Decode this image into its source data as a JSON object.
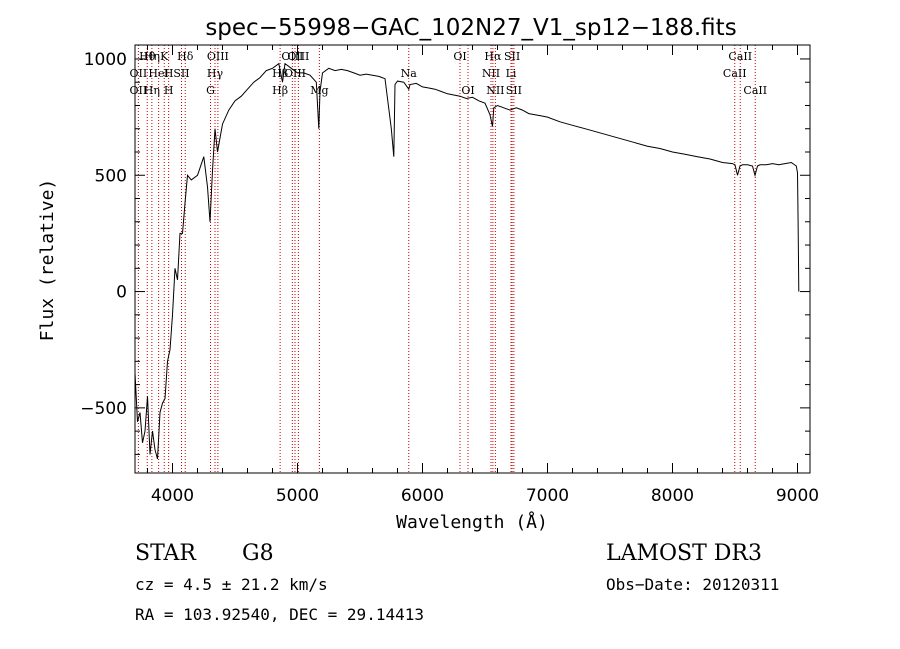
{
  "chart_data": {
    "type": "line",
    "title": "spec−55998−GAC_102N27_V1_sp12−188.fits",
    "xlabel": "Wavelength (Å)",
    "ylabel": "Flux (relative)",
    "xlim": [
      3700,
      9100
    ],
    "ylim": [
      -780,
      1060
    ],
    "x_ticks": [
      4000,
      5000,
      6000,
      7000,
      8000,
      9000
    ],
    "x_tick_labels": [
      "4000",
      "5000",
      "6000",
      "7000",
      "8000",
      "9000"
    ],
    "y_ticks": [
      -500,
      0,
      500,
      1000
    ],
    "y_tick_labels": [
      "−500",
      "0",
      "500",
      "1000"
    ],
    "series": [
      {
        "name": "flux",
        "x": [
          3700,
          3720,
          3740,
          3760,
          3780,
          3800,
          3820,
          3840,
          3860,
          3880,
          3900,
          3920,
          3940,
          3960,
          3980,
          4000,
          4020,
          4040,
          4060,
          4080,
          4100,
          4120,
          4150,
          4200,
          4250,
          4280,
          4300,
          4320,
          4340,
          4360,
          4400,
          4450,
          4500,
          4550,
          4600,
          4650,
          4700,
          4750,
          4800,
          4850,
          4880,
          4900,
          4950,
          5000,
          5050,
          5100,
          5150,
          5170,
          5180,
          5200,
          5250,
          5300,
          5350,
          5400,
          5450,
          5500,
          5550,
          5600,
          5650,
          5700,
          5750,
          5770,
          5780,
          5800,
          5850,
          5890,
          5900,
          5950,
          6000,
          6050,
          6100,
          6150,
          6200,
          6250,
          6300,
          6350,
          6400,
          6450,
          6500,
          6540,
          6560,
          6570,
          6600,
          6650,
          6700,
          6750,
          6800,
          6850,
          6900,
          6950,
          7000,
          7100,
          7200,
          7300,
          7400,
          7500,
          7600,
          7700,
          7800,
          7900,
          8000,
          8100,
          8200,
          8300,
          8400,
          8480,
          8500,
          8520,
          8540,
          8560,
          8600,
          8640,
          8660,
          8680,
          8700,
          8750,
          8800,
          8850,
          8900,
          8950,
          8990,
          9000,
          9005,
          9010
        ],
        "values": [
          -350,
          -560,
          -520,
          -650,
          -600,
          -450,
          -700,
          -600,
          -680,
          -720,
          -520,
          -480,
          -460,
          -300,
          -250,
          -100,
          100,
          50,
          250,
          250,
          380,
          500,
          480,
          500,
          580,
          450,
          300,
          520,
          700,
          600,
          720,
          780,
          820,
          840,
          870,
          900,
          920,
          950,
          960,
          980,
          900,
          980,
          960,
          940,
          940,
          930,
          900,
          700,
          860,
          940,
          960,
          950,
          955,
          950,
          940,
          930,
          935,
          930,
          925,
          915,
          700,
          580,
          890,
          905,
          900,
          870,
          890,
          895,
          880,
          875,
          870,
          860,
          850,
          845,
          840,
          830,
          835,
          820,
          810,
          760,
          710,
          790,
          800,
          790,
          780,
          790,
          780,
          765,
          760,
          755,
          750,
          730,
          715,
          700,
          685,
          670,
          655,
          640,
          625,
          615,
          600,
          590,
          580,
          570,
          555,
          550,
          545,
          500,
          540,
          545,
          545,
          540,
          500,
          540,
          545,
          545,
          550,
          545,
          550,
          555,
          540,
          510,
          300,
          0
        ]
      }
    ],
    "line_markers": [
      {
        "wavelength": 3798,
        "label": "Hθ",
        "row": 1
      },
      {
        "wavelength": 3835,
        "label": "Hη",
        "row": 1
      },
      {
        "wavelength": 3934,
        "label": "K",
        "row": 1
      },
      {
        "wavelength": 4102,
        "label": "Hδ",
        "row": 1
      },
      {
        "wavelength": 4363,
        "label": "OIII",
        "row": 1
      },
      {
        "wavelength": 4959,
        "label": "OIII",
        "row": 1
      },
      {
        "wavelength": 5007,
        "label": "OIII",
        "row": 1
      },
      {
        "wavelength": 6300,
        "label": "OI",
        "row": 1
      },
      {
        "wavelength": 6563,
        "label": "Hα",
        "row": 1
      },
      {
        "wavelength": 6717,
        "label": "SII",
        "row": 1
      },
      {
        "wavelength": 8542,
        "label": "CaII",
        "row": 1
      },
      {
        "wavelength": 3727,
        "label": "OII",
        "row": 2
      },
      {
        "wavelength": 3889,
        "label": "HeI",
        "row": 2
      },
      {
        "wavelength": 3969,
        "label": "H",
        "row": 2
      },
      {
        "wavelength": 4072,
        "label": "SII",
        "row": 2
      },
      {
        "wavelength": 4340,
        "label": "Hγ",
        "row": 2
      },
      {
        "wavelength": 4861,
        "label": "Hβ",
        "row": 2
      },
      {
        "wavelength": 4980,
        "label": "OIII",
        "row": 2
      },
      {
        "wavelength": 5890,
        "label": "Na",
        "row": 2
      },
      {
        "wavelength": 6548,
        "label": "NII",
        "row": 2
      },
      {
        "wavelength": 6708,
        "label": "Li",
        "row": 2
      },
      {
        "wavelength": 8498,
        "label": "CaII",
        "row": 2
      },
      {
        "wavelength": 3727,
        "label": "OII",
        "row": 3
      },
      {
        "wavelength": 3835,
        "label": "Hη",
        "row": 3
      },
      {
        "wavelength": 3969,
        "label": "H",
        "row": 3
      },
      {
        "wavelength": 4304,
        "label": "G",
        "row": 3
      },
      {
        "wavelength": 4861,
        "label": "Hβ",
        "row": 3
      },
      {
        "wavelength": 5175,
        "label": "Mg",
        "row": 3
      },
      {
        "wavelength": 6364,
        "label": "OI",
        "row": 3
      },
      {
        "wavelength": 6583,
        "label": "NII",
        "row": 3
      },
      {
        "wavelength": 6731,
        "label": "SII",
        "row": 3
      },
      {
        "wavelength": 8662,
        "label": "CaII",
        "row": 3
      }
    ]
  },
  "info": {
    "object_class": "STAR",
    "subclass": "G8",
    "survey": "LAMOST DR3",
    "redshift": "cz = 4.5 ± 21.2 km/s",
    "obs_date": "Obs−Date: 20120311",
    "coords": "RA = 103.92540, DEC =  29.14413"
  },
  "colors": {
    "line_marker": "#cc0000",
    "spectrum": "#000000",
    "axes": "#000000"
  }
}
